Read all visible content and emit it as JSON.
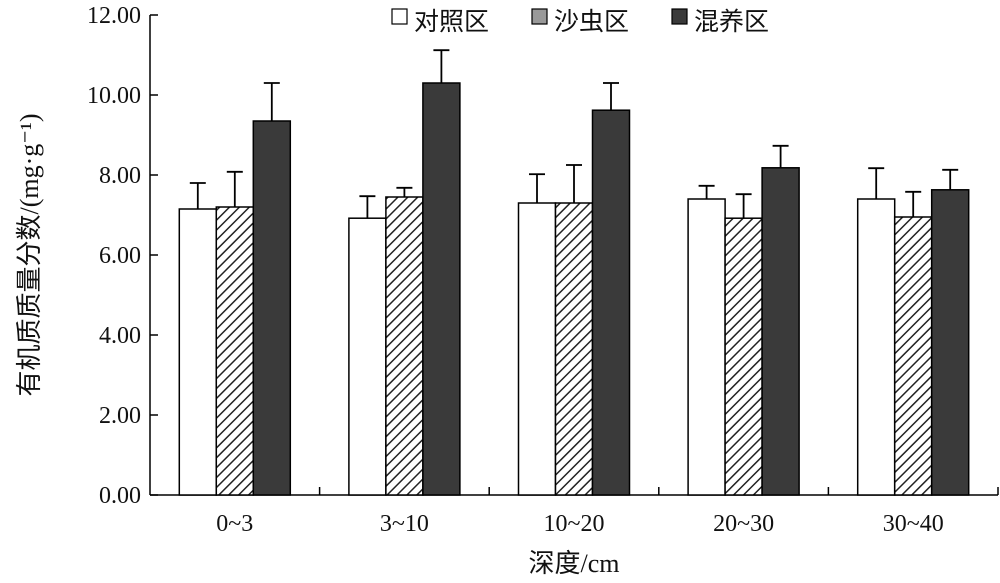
{
  "chart_data": {
    "type": "bar",
    "title": "",
    "xlabel": "深度/cm",
    "ylabel": "有机质质量分数/(mg·g⁻¹)",
    "ylim": [
      0,
      12
    ],
    "yticks": [
      "0.00",
      "2.00",
      "4.00",
      "6.00",
      "8.00",
      "10.00",
      "12.00"
    ],
    "categories": [
      "0~3",
      "3~10",
      "10~20",
      "20~30",
      "30~40"
    ],
    "legend_position": "top-right",
    "grid": false,
    "series": [
      {
        "name": "对照区",
        "pattern": "solid",
        "fill": "#ffffff",
        "values": [
          7.15,
          6.92,
          7.3,
          7.4,
          7.4
        ],
        "errors": [
          0.65,
          0.55,
          0.72,
          0.33,
          0.77
        ]
      },
      {
        "name": "沙虫区",
        "pattern": "hatched",
        "fill": "#999999",
        "values": [
          7.2,
          7.45,
          7.3,
          6.92,
          6.95
        ],
        "errors": [
          0.88,
          0.23,
          0.95,
          0.6,
          0.63
        ]
      },
      {
        "name": "混养区",
        "pattern": "solid",
        "fill": "#3a3a3a",
        "values": [
          9.35,
          10.3,
          9.62,
          8.18,
          7.63
        ],
        "errors": [
          0.95,
          0.82,
          0.68,
          0.55,
          0.5
        ]
      }
    ]
  }
}
